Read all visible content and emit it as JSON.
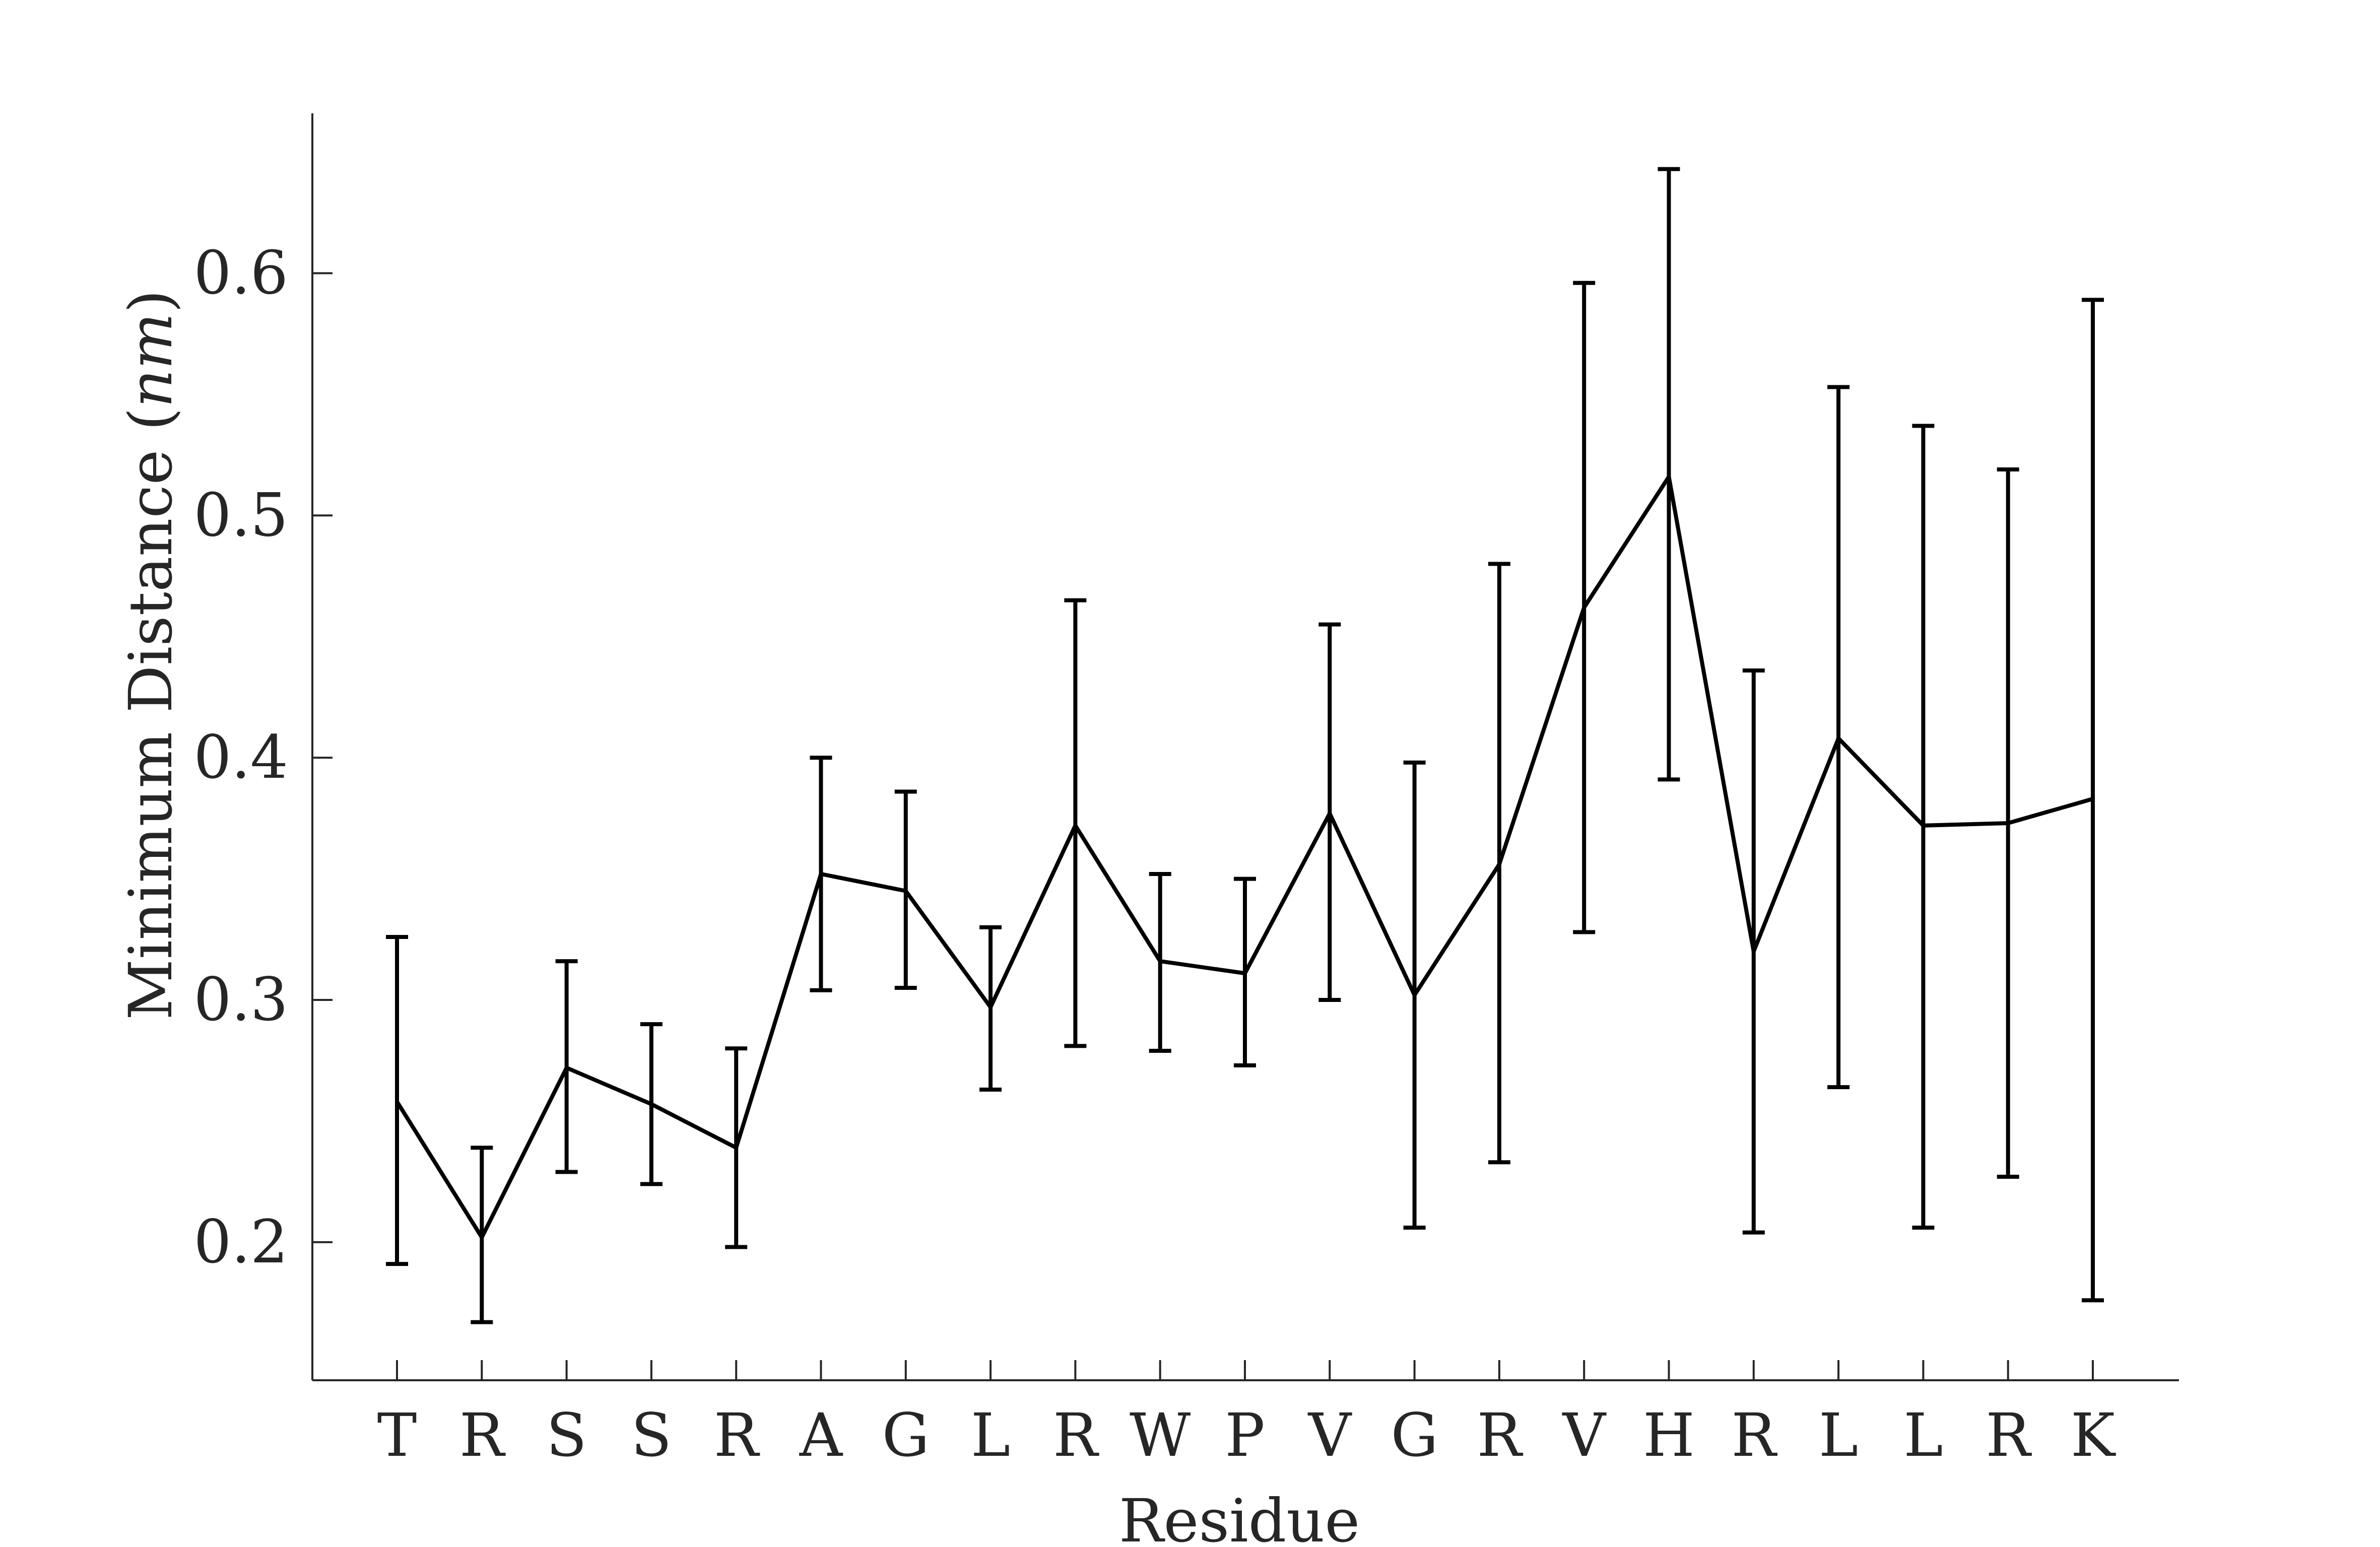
{
  "chart_data": {
    "type": "line",
    "title": "",
    "xlabel": "Residue",
    "ylabel": "Minimum Distance (",
    "ylabel_unit": "nm",
    "ylabel_close": ")",
    "categories": [
      "T",
      "R",
      "S",
      "S",
      "R",
      "A",
      "G",
      "L",
      "R",
      "W",
      "P",
      "V",
      "G",
      "R",
      "V",
      "H",
      "R",
      "L",
      "L",
      "R",
      "K"
    ],
    "ylim": [
      0.143,
      0.666
    ],
    "yticks": [
      0.2,
      0.3,
      0.4,
      0.5,
      0.6
    ],
    "ytick_labels": [
      "0.2",
      "0.3",
      "0.4",
      "0.5",
      "0.6"
    ],
    "grid": false,
    "series": [
      {
        "values": [
          0.258,
          0.202,
          0.272,
          0.257,
          0.239,
          0.352,
          0.345,
          0.297,
          0.372,
          0.316,
          0.311,
          0.377,
          0.302,
          0.356,
          0.462,
          0.516,
          0.32,
          0.408,
          0.372,
          0.373,
          0.383
        ],
        "err_low": [
          0.191,
          0.167,
          0.229,
          0.224,
          0.198,
          0.304,
          0.305,
          0.263,
          0.281,
          0.279,
          0.273,
          0.3,
          0.206,
          0.233,
          0.328,
          0.391,
          0.204,
          0.264,
          0.206,
          0.227,
          0.176
        ],
        "err_high": [
          0.326,
          0.239,
          0.316,
          0.29,
          0.28,
          0.4,
          0.386,
          0.33,
          0.465,
          0.352,
          0.35,
          0.455,
          0.398,
          0.48,
          0.596,
          0.643,
          0.436,
          0.553,
          0.537,
          0.519,
          0.589
        ]
      }
    ],
    "colors": {
      "line": "#000000",
      "axis": "#262626"
    }
  }
}
